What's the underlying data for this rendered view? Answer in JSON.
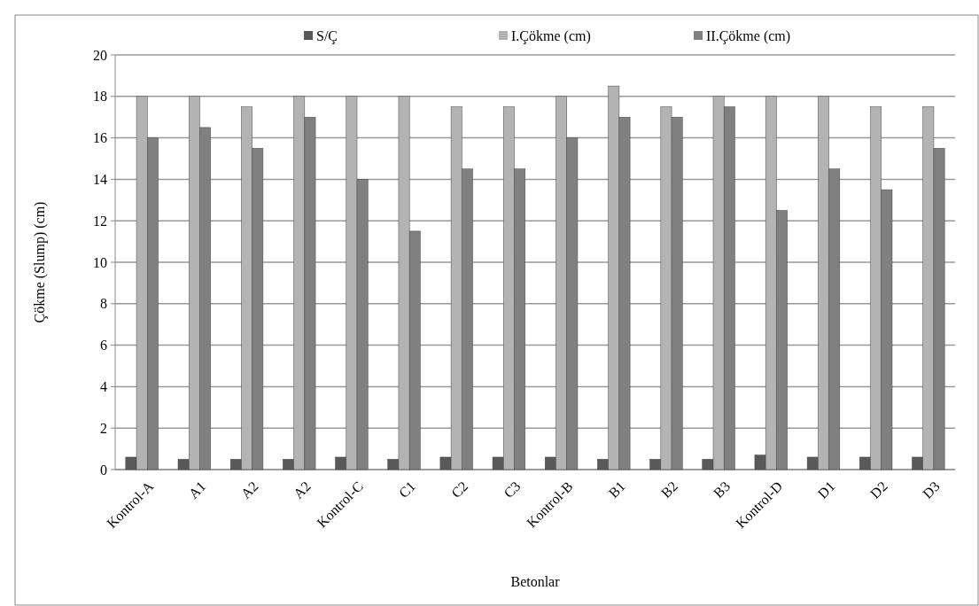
{
  "chart_data": {
    "type": "bar",
    "xlabel": "Betonlar",
    "ylabel": "Çökme (Slump) (cm)",
    "categories": [
      "Kontrol-A",
      "A1",
      "A2",
      "A2",
      "Kontrol-C",
      "C1",
      "C2",
      "C3",
      "Kontrol-B",
      "B1",
      "B2",
      "B3",
      "Kontrol-D",
      "D1",
      "D2",
      "D3"
    ],
    "series": [
      {
        "name": "S/Ç",
        "color": "#595959",
        "values": [
          0.6,
          0.5,
          0.5,
          0.5,
          0.6,
          0.5,
          0.6,
          0.6,
          0.6,
          0.5,
          0.5,
          0.5,
          0.7,
          0.6,
          0.6,
          0.6
        ]
      },
      {
        "name": "I.Çökme (cm)",
        "color": "#b3b3b3",
        "values": [
          18,
          18,
          17.5,
          18,
          18,
          18,
          17.5,
          17.5,
          18,
          18.5,
          17.5,
          18,
          18,
          18,
          17.5,
          17.5
        ]
      },
      {
        "name": "II.Çökme (cm)",
        "color": "#808080",
        "values": [
          16,
          16.5,
          15.5,
          17,
          14,
          11.5,
          14.5,
          14.5,
          16,
          17,
          17,
          17.5,
          12.5,
          14.5,
          13.5,
          15.5
        ]
      }
    ],
    "ylim": [
      0,
      20
    ],
    "yticks": [
      0,
      2,
      4,
      6,
      8,
      10,
      12,
      14,
      16,
      18,
      20
    ],
    "grid": "y",
    "legend": "top"
  }
}
